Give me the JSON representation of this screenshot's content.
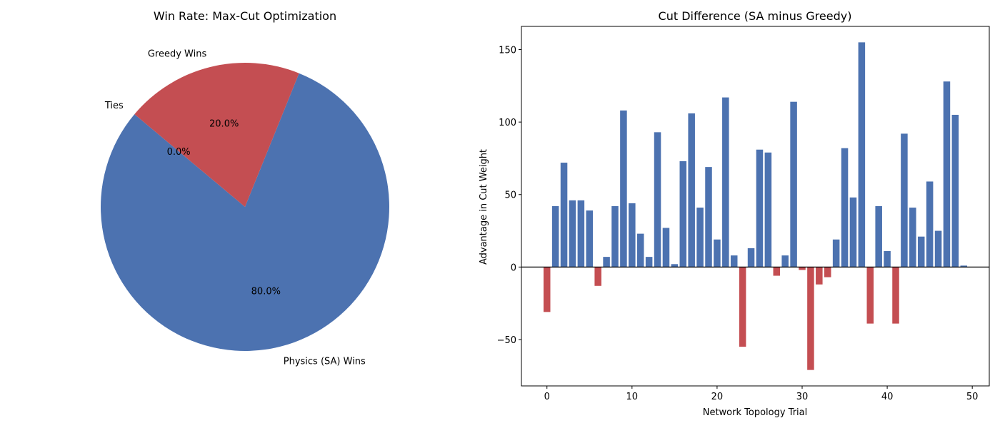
{
  "chart_data": [
    {
      "type": "pie",
      "title": "Win Rate: Max-Cut Optimization",
      "labels": [
        "Physics (SA) Wins",
        "Greedy Wins",
        "Ties"
      ],
      "values": [
        40,
        10,
        0
      ],
      "percent_labels": [
        "80.0%",
        "20.0%",
        "0.0%"
      ],
      "colors": [
        "#4c72b0",
        "#c44e52",
        "#55a868"
      ],
      "start_angle_deg": 140
    },
    {
      "type": "bar",
      "title": "Cut Difference (SA minus Greedy)",
      "xlabel": "Network Topology Trial",
      "ylabel": "Advantage in Cut Weight",
      "x": [
        0,
        1,
        2,
        3,
        4,
        5,
        6,
        7,
        8,
        9,
        10,
        11,
        12,
        13,
        14,
        15,
        16,
        17,
        18,
        19,
        20,
        21,
        22,
        23,
        24,
        25,
        26,
        27,
        28,
        29,
        30,
        31,
        32,
        33,
        34,
        35,
        36,
        37,
        38,
        39,
        40,
        41,
        42,
        43,
        44,
        45,
        46,
        47,
        48,
        49
      ],
      "values": [
        -31,
        42,
        72,
        46,
        46,
        39,
        -13,
        7,
        42,
        108,
        44,
        23,
        7,
        93,
        27,
        2,
        73,
        106,
        41,
        69,
        19,
        117,
        8,
        -55,
        13,
        81,
        79,
        -6,
        8,
        114,
        -2,
        -71,
        -12,
        -7,
        19,
        82,
        48,
        155,
        -39,
        42,
        11,
        -39,
        92,
        41,
        21,
        59,
        25,
        128,
        105,
        1
      ],
      "positive_color": "#4c72b0",
      "negative_color": "#c44e52",
      "xlim": [
        -3,
        52
      ],
      "ylim": [
        -82,
        166
      ],
      "xticks": [
        0,
        10,
        20,
        30,
        40,
        50
      ],
      "yticks": [
        -50,
        0,
        50,
        100,
        150
      ],
      "ytick_labels": [
        "−50",
        "0",
        "50",
        "100",
        "150"
      ],
      "zero_line": true
    }
  ]
}
